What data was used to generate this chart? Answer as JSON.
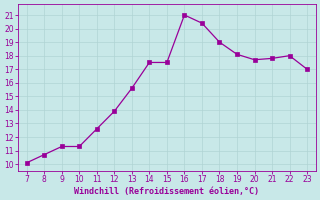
{
  "x": [
    7,
    8,
    9,
    10,
    11,
    12,
    13,
    14,
    15,
    16,
    17,
    18,
    19,
    20,
    21,
    22,
    23
  ],
  "y": [
    10.1,
    10.7,
    11.3,
    11.3,
    12.6,
    13.9,
    15.6,
    17.5,
    17.5,
    21.0,
    20.4,
    19.0,
    18.1,
    17.7,
    17.8,
    18.0,
    17.0
  ],
  "line_color": "#990099",
  "marker_color": "#990099",
  "bg_color": "#c8e8e8",
  "grid_color": "#b0d4d4",
  "xlabel": "Windchill (Refroidissement éolien,°C)",
  "xlabel_color": "#990099",
  "ylim_min": 9.5,
  "ylim_max": 21.8,
  "xlim_min": 6.5,
  "xlim_max": 23.5,
  "yticks": [
    10,
    11,
    12,
    13,
    14,
    15,
    16,
    17,
    18,
    19,
    20,
    21
  ],
  "xticks": [
    7,
    8,
    9,
    10,
    11,
    12,
    13,
    14,
    15,
    16,
    17,
    18,
    19,
    20,
    21,
    22,
    23
  ],
  "tick_color": "#990099",
  "spine_color": "#990099",
  "tick_labelsize": 5.5,
  "xlabel_fontsize": 6.0,
  "linewidth": 0.9,
  "markersize": 2.2
}
